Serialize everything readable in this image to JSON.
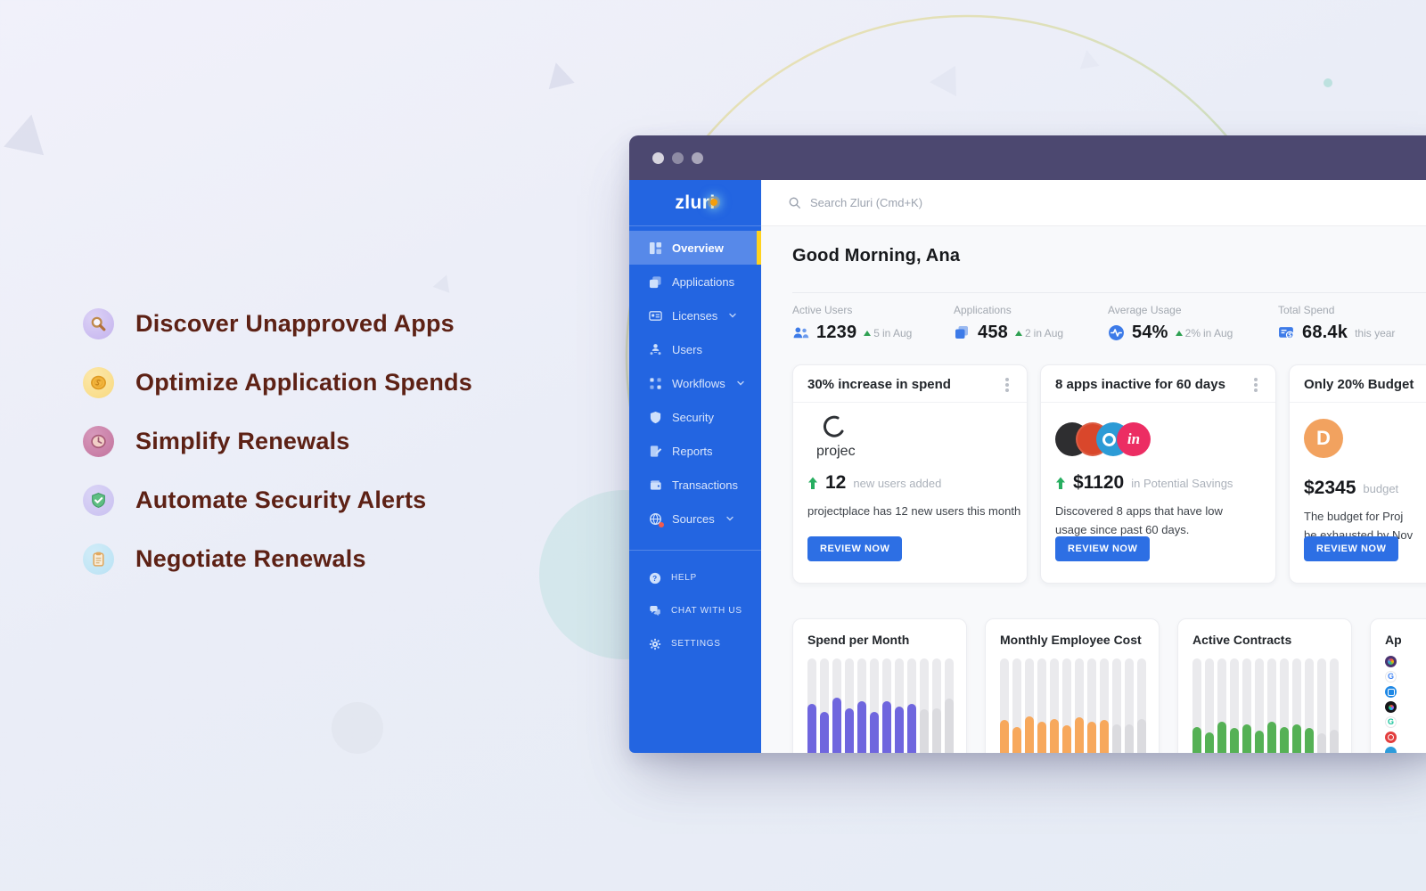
{
  "features": {
    "text_color": "#5D2115",
    "items": [
      {
        "icon": "magnifier-3d-icon",
        "label": "Discover Unapproved Apps"
      },
      {
        "icon": "coin-3d-icon",
        "label": "Optimize Application Spends"
      },
      {
        "icon": "clock-3d-icon",
        "label": "Simplify Renewals"
      },
      {
        "icon": "shield-3d-icon",
        "label": "Automate Security Alerts"
      },
      {
        "icon": "clipboard-3d-icon",
        "label": "Negotiate Renewals"
      }
    ]
  },
  "window": {
    "sidebar": {
      "logo": "zluri",
      "items": [
        {
          "label": "Overview",
          "active": true
        },
        {
          "label": "Applications"
        },
        {
          "label": "Licenses",
          "chevron": true
        },
        {
          "label": "Users"
        },
        {
          "label": "Workflows",
          "chevron": true
        },
        {
          "label": "Security"
        },
        {
          "label": "Reports"
        },
        {
          "label": "Transactions"
        },
        {
          "label": "Sources",
          "chevron": true,
          "badge": true
        }
      ],
      "footer_items": [
        {
          "label": "HELP"
        },
        {
          "label": "CHAT WITH US"
        },
        {
          "label": "SETTINGS"
        }
      ]
    },
    "header": {
      "search_placeholder": "Search Zluri (Cmd+K)"
    },
    "main": {
      "greeting": "Good Morning, Ana",
      "stats": [
        {
          "label": "Active Users",
          "value": "1239",
          "delta": "5",
          "delta_suffix": "in Aug"
        },
        {
          "label": "Applications",
          "value": "458",
          "delta": "2",
          "delta_suffix": "in Aug"
        },
        {
          "label": "Average Usage",
          "value": "54%",
          "delta": "2%",
          "delta_suffix": "in Aug"
        },
        {
          "label": "Total Spend",
          "value": "68.4k",
          "delta": "",
          "delta_suffix": "this year"
        }
      ],
      "alert_cards": [
        {
          "title": "30% increase in spend",
          "logo_text": "projec",
          "metric": "12",
          "metric_suffix": "new users added",
          "desc_line1": "projectplace has 12 new users this month",
          "desc_line2": "",
          "button_label": "REVIEW NOW"
        },
        {
          "title": "8 apps inactive for 60 days",
          "stack_letter": "in",
          "metric": "$1120",
          "metric_suffix": "in Potential Savings",
          "desc_line1": "Discovered 8 apps that have low",
          "desc_line2": "usage since past 60 days.",
          "button_label": "REVIEW NOW"
        },
        {
          "title": "Only 20% Budget",
          "logo_letter": "D",
          "metric": "$2345",
          "metric_suffix": "budget",
          "desc_line1": "The budget for Proj",
          "desc_line2": "be exhausted by Nov",
          "button_label": "REVIEW NOW"
        }
      ],
      "apps_card": {
        "title": "Ap",
        "glyph_google": "G",
        "glyph_grammarly": "G"
      }
    }
  },
  "chart_data": [
    {
      "type": "bar",
      "title": "Spend per Month",
      "values": [
        66,
        60,
        71,
        63,
        68,
        60,
        68,
        64,
        66,
        62,
        63,
        70
      ],
      "colored_count": 9,
      "color": "#6F66DE",
      "muted_color": "#DBDBDF",
      "ylim": [
        0,
        100
      ],
      "grid": false,
      "legend": false
    },
    {
      "type": "bar",
      "title": "Monthly Employee Cost",
      "values": [
        54,
        49,
        57,
        53,
        55,
        50,
        56,
        53,
        54,
        51,
        51,
        55
      ],
      "colored_count": 9,
      "color": "#F7A85C",
      "muted_color": "#DBDBDF",
      "ylim": [
        0,
        100
      ],
      "grid": false,
      "legend": false
    },
    {
      "type": "bar",
      "title": "Active Contracts",
      "values": [
        49,
        45,
        53,
        48,
        51,
        46,
        53,
        49,
        51,
        48,
        44,
        47
      ],
      "colored_count": 10,
      "color": "#55B155",
      "muted_color": "#DBDBDF",
      "ylim": [
        0,
        100
      ],
      "grid": false,
      "legend": false
    }
  ],
  "colors": {
    "titlebar": "#4C4870",
    "sidebar": "#2365E1",
    "active_item": "#5789E9",
    "active_accent": "#FFD21E",
    "primary_button": "#2D6FE4",
    "delta_green": "#2EA052",
    "stat_icon_blue": "#3D7BE8"
  }
}
